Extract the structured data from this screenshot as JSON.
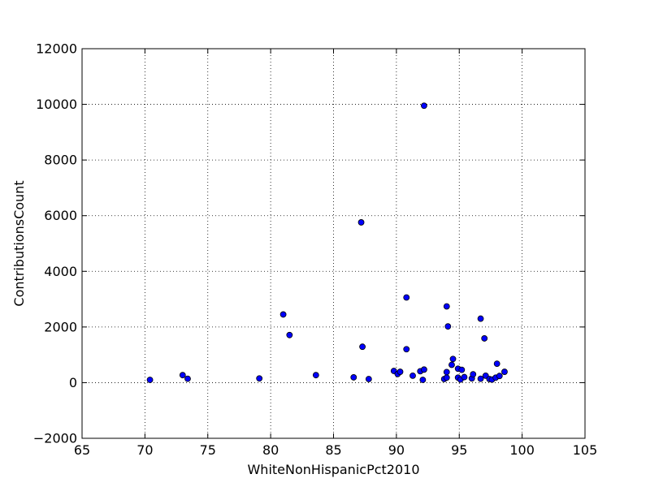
{
  "chart_data": {
    "type": "scatter",
    "title": "",
    "xlabel": "WhiteNonHispanicPct2010",
    "ylabel": "ContributionsCount",
    "xlim": [
      65,
      105
    ],
    "ylim": [
      -2000,
      12000
    ],
    "xticks": [
      65,
      70,
      75,
      80,
      85,
      90,
      95,
      100,
      105
    ],
    "yticks": [
      -2000,
      0,
      2000,
      4000,
      6000,
      8000,
      10000,
      12000
    ],
    "xtick_labels": [
      "65",
      "70",
      "75",
      "80",
      "85",
      "90",
      "95",
      "100",
      "105"
    ],
    "ytick_labels": [
      "−2000",
      "0",
      "2000",
      "4000",
      "6000",
      "8000",
      "10000",
      "12000"
    ],
    "grid": true,
    "marker_color": "#0000ff",
    "marker_edge_color": "#000000",
    "series": [
      {
        "points": [
          [
            70.4,
            100
          ],
          [
            73.0,
            270
          ],
          [
            73.4,
            140
          ],
          [
            79.1,
            150
          ],
          [
            81.0,
            2450
          ],
          [
            81.5,
            1710
          ],
          [
            83.6,
            270
          ],
          [
            86.6,
            190
          ],
          [
            87.2,
            5760
          ],
          [
            87.3,
            1290
          ],
          [
            87.8,
            130
          ],
          [
            89.8,
            420
          ],
          [
            90.1,
            310
          ],
          [
            90.3,
            390
          ],
          [
            90.8,
            3060
          ],
          [
            90.8,
            1200
          ],
          [
            91.3,
            250
          ],
          [
            91.9,
            410
          ],
          [
            92.1,
            100
          ],
          [
            92.2,
            470
          ],
          [
            92.2,
            9950
          ],
          [
            93.8,
            130
          ],
          [
            94.0,
            180
          ],
          [
            94.0,
            380
          ],
          [
            94.0,
            2740
          ],
          [
            94.1,
            2020
          ],
          [
            94.4,
            640
          ],
          [
            94.5,
            850
          ],
          [
            94.9,
            500
          ],
          [
            94.9,
            180
          ],
          [
            95.1,
            110
          ],
          [
            95.2,
            460
          ],
          [
            95.4,
            200
          ],
          [
            96.0,
            150
          ],
          [
            96.1,
            300
          ],
          [
            96.7,
            2300
          ],
          [
            96.7,
            140
          ],
          [
            97.0,
            1590
          ],
          [
            97.1,
            250
          ],
          [
            97.4,
            130
          ],
          [
            97.6,
            110
          ],
          [
            97.9,
            180
          ],
          [
            98.0,
            680
          ],
          [
            98.2,
            240
          ],
          [
            98.6,
            390
          ]
        ]
      }
    ]
  }
}
